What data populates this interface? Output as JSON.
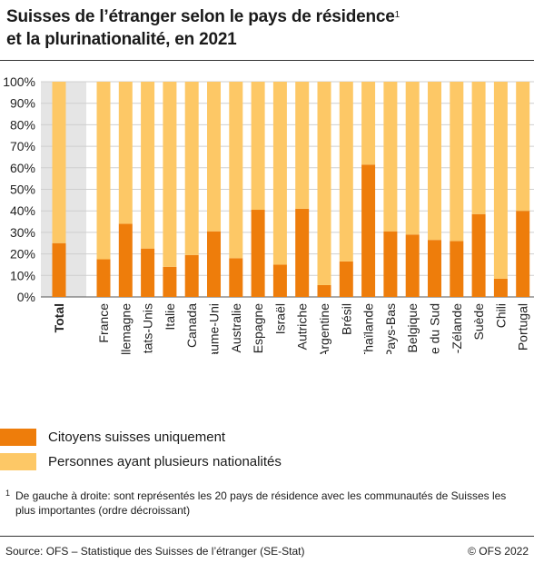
{
  "title": "Suisses de l’étranger selon le pays de résidence",
  "title_line2": "et la plurinationalité, en 2021",
  "title_note_mark": "1",
  "footnote": {
    "mark": "1",
    "text": "De gauche à droite: sont représentés les 20 pays de résidence avec les communautés de Suisses les plus importantes (ordre décroissant)"
  },
  "source": "Source: OFS – Statistique des Suisses de l’étranger (SE-Stat)",
  "copyright": "© OFS 2022",
  "colors": {
    "citoyens": "#ee7d0b",
    "plusieurs": "#fdc866",
    "background_band": "#e5e5e5"
  },
  "chart_data": {
    "type": "bar",
    "stacked": true,
    "percent": true,
    "categories": [
      "Total",
      "France",
      "Allemagne",
      "États-Unis",
      "Italie",
      "Canada",
      "Royaume-Uni",
      "Australie",
      "Espagne",
      "Israël",
      "Autriche",
      "Argentine",
      "Brésil",
      "Thaïlande",
      "Pays-Bas",
      "Belgique",
      "Afrique du Sud",
      "Nouvelle-Zélande",
      "Suède",
      "Chili",
      "Portugal"
    ],
    "emphasized_category": "Total",
    "series": [
      {
        "name": "Citoyens suisses uniquement",
        "color": "#ee7d0b",
        "values": [
          25,
          17.5,
          34,
          22.5,
          14,
          19.5,
          30.5,
          18,
          40.5,
          15,
          41,
          5.5,
          16.5,
          61.5,
          30.5,
          29,
          26.5,
          26,
          38.5,
          8.5,
          40
        ]
      },
      {
        "name": "Personnes ayant plusieurs nationalités",
        "color": "#fdc866",
        "values": [
          75,
          82.5,
          66,
          77.5,
          86,
          80.5,
          69.5,
          82,
          59.5,
          85,
          59,
          94.5,
          83.5,
          38.5,
          69.5,
          71,
          73.5,
          74,
          61.5,
          91.5,
          60
        ]
      }
    ],
    "ylim": [
      0,
      100
    ],
    "yticks": [
      "0%",
      "10%",
      "20%",
      "30%",
      "40%",
      "50%",
      "60%",
      "70%",
      "80%",
      "90%",
      "100%"
    ],
    "grid": true,
    "legend_position": "bottom-left"
  }
}
